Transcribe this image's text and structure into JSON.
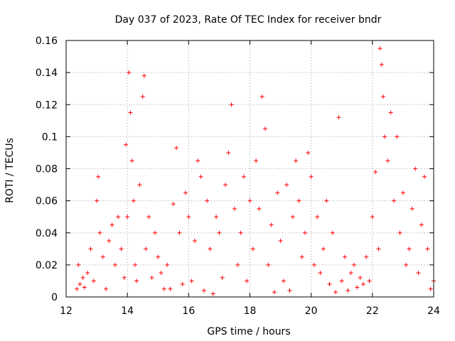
{
  "chart_data": {
    "type": "scatter",
    "title": "Day 037 of 2023, Rate Of TEC Index for receiver bndr",
    "xlabel": "GPS time / hours",
    "ylabel": "ROTI / TECUs",
    "xlim": [
      12,
      24
    ],
    "ylim": [
      0,
      0.16
    ],
    "x_ticks": [
      12,
      14,
      16,
      18,
      20,
      22,
      24
    ],
    "y_ticks": [
      0,
      0.02,
      0.04,
      0.06,
      0.08,
      0.1,
      0.12,
      0.14,
      0.16
    ],
    "x_tick_labels": [
      "12",
      "14",
      "16",
      "18",
      "20",
      "22",
      "24"
    ],
    "y_tick_labels": [
      "0",
      "0.02",
      "0.04",
      "0.06",
      "0.08",
      "0.1",
      "0.12",
      "0.14",
      "0.16"
    ],
    "grid": true,
    "marker": "+",
    "marker_color": "#ff0000",
    "series": [
      {
        "x": [
          12.35,
          12.4,
          12.45,
          12.55,
          12.6,
          12.7,
          12.8,
          12.9,
          13.0,
          13.05,
          13.1,
          13.2,
          13.3,
          13.4,
          13.5,
          13.6,
          13.7,
          13.8,
          13.9,
          13.95,
          14.0,
          14.05,
          14.1,
          14.15,
          14.2,
          14.25,
          14.3,
          14.4,
          14.5,
          14.55,
          14.6,
          14.7,
          14.8,
          14.9,
          15.0,
          15.1,
          15.2,
          15.3,
          15.4,
          15.5,
          15.6,
          15.7,
          15.8,
          15.9,
          16.0,
          16.1,
          16.2,
          16.3,
          16.4,
          16.5,
          16.6,
          16.7,
          16.8,
          16.9,
          17.0,
          17.1,
          17.2,
          17.3,
          17.4,
          17.5,
          17.6,
          17.7,
          17.8,
          17.9,
          18.0,
          18.1,
          18.2,
          18.3,
          18.4,
          18.5,
          18.6,
          18.7,
          18.8,
          18.9,
          19.0,
          19.1,
          19.2,
          19.3,
          19.4,
          19.5,
          19.6,
          19.7,
          19.8,
          19.9,
          20.0,
          20.1,
          20.2,
          20.3,
          20.4,
          20.5,
          20.6,
          20.7,
          20.8,
          20.9,
          21.0,
          21.1,
          21.2,
          21.3,
          21.4,
          21.5,
          21.6,
          21.7,
          21.8,
          21.9,
          22.0,
          22.1,
          22.2,
          22.25,
          22.3,
          22.35,
          22.4,
          22.5,
          22.6,
          22.7,
          22.8,
          22.9,
          23.0,
          23.1,
          23.2,
          23.3,
          23.4,
          23.5,
          23.6,
          23.7,
          23.8,
          23.9,
          24.0
        ],
        "y": [
          0.005,
          0.02,
          0.008,
          0.012,
          0.006,
          0.015,
          0.03,
          0.01,
          0.06,
          0.075,
          0.04,
          0.025,
          0.005,
          0.035,
          0.045,
          0.02,
          0.05,
          0.03,
          0.012,
          0.095,
          0.05,
          0.14,
          0.115,
          0.085,
          0.06,
          0.02,
          0.01,
          0.07,
          0.125,
          0.138,
          0.03,
          0.05,
          0.012,
          0.04,
          0.025,
          0.015,
          0.005,
          0.02,
          0.005,
          0.058,
          0.093,
          0.04,
          0.008,
          0.065,
          0.05,
          0.01,
          0.035,
          0.085,
          0.075,
          0.004,
          0.06,
          0.03,
          0.002,
          0.05,
          0.04,
          0.012,
          0.07,
          0.09,
          0.12,
          0.055,
          0.02,
          0.04,
          0.075,
          0.01,
          0.06,
          0.03,
          0.085,
          0.055,
          0.125,
          0.105,
          0.02,
          0.045,
          0.003,
          0.065,
          0.035,
          0.01,
          0.07,
          0.004,
          0.05,
          0.085,
          0.06,
          0.025,
          0.04,
          0.09,
          0.075,
          0.02,
          0.05,
          0.015,
          0.03,
          0.06,
          0.008,
          0.04,
          0.003,
          0.112,
          0.01,
          0.025,
          0.004,
          0.015,
          0.02,
          0.006,
          0.012,
          0.008,
          0.025,
          0.01,
          0.05,
          0.078,
          0.03,
          0.155,
          0.145,
          0.125,
          0.1,
          0.085,
          0.115,
          0.06,
          0.1,
          0.04,
          0.065,
          0.02,
          0.03,
          0.055,
          0.08,
          0.015,
          0.045,
          0.075,
          0.03,
          0.005,
          0.01
        ]
      }
    ]
  }
}
